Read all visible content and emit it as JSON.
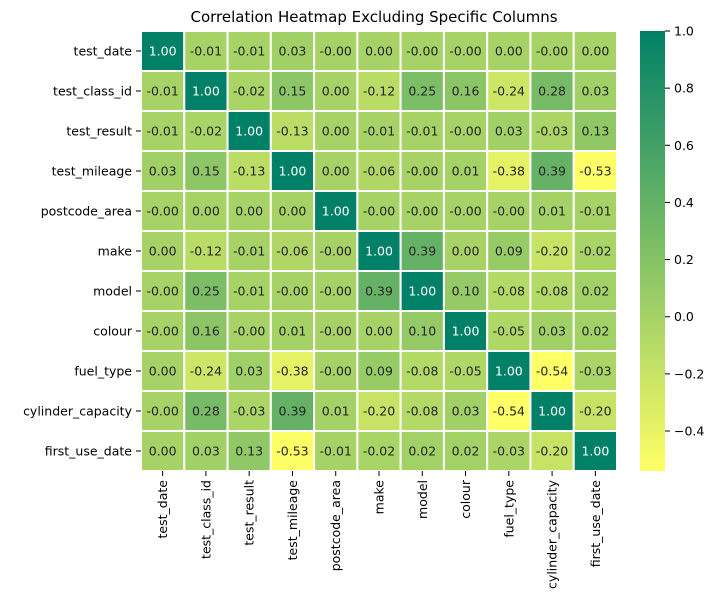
{
  "chart_data": {
    "type": "heatmap",
    "title": "Correlation Heatmap Excluding Specific Columns",
    "xlabel": "",
    "ylabel": "",
    "categories": [
      "test_date",
      "test_class_id",
      "test_result",
      "test_mileage",
      "postcode_area",
      "make",
      "model",
      "colour",
      "fuel_type",
      "cylinder_capacity",
      "first_use_date"
    ],
    "cell_labels": [
      [
        "1.00",
        "-0.01",
        "-0.01",
        "0.03",
        "-0.00",
        "0.00",
        "-0.00",
        "-0.00",
        "0.00",
        "-0.00",
        "0.00"
      ],
      [
        "-0.01",
        "1.00",
        "-0.02",
        "0.15",
        "0.00",
        "-0.12",
        "0.25",
        "0.16",
        "-0.24",
        "0.28",
        "0.03"
      ],
      [
        "-0.01",
        "-0.02",
        "1.00",
        "-0.13",
        "0.00",
        "-0.01",
        "-0.01",
        "-0.00",
        "0.03",
        "-0.03",
        "0.13"
      ],
      [
        "0.03",
        "0.15",
        "-0.13",
        "1.00",
        "0.00",
        "-0.06",
        "-0.00",
        "0.01",
        "-0.38",
        "0.39",
        "-0.53"
      ],
      [
        "-0.00",
        "0.00",
        "0.00",
        "0.00",
        "1.00",
        "-0.00",
        "-0.00",
        "-0.00",
        "-0.00",
        "0.01",
        "-0.01"
      ],
      [
        "0.00",
        "-0.12",
        "-0.01",
        "-0.06",
        "-0.00",
        "1.00",
        "0.39",
        "0.00",
        "0.09",
        "-0.20",
        "-0.02"
      ],
      [
        "-0.00",
        "0.25",
        "-0.01",
        "-0.00",
        "-0.00",
        "0.39",
        "1.00",
        "0.10",
        "-0.08",
        "-0.08",
        "0.02"
      ],
      [
        "-0.00",
        "0.16",
        "-0.00",
        "0.01",
        "-0.00",
        "0.00",
        "0.10",
        "1.00",
        "-0.05",
        "0.03",
        "0.02"
      ],
      [
        "0.00",
        "-0.24",
        "0.03",
        "-0.38",
        "-0.00",
        "0.09",
        "-0.08",
        "-0.05",
        "1.00",
        "-0.54",
        "-0.03"
      ],
      [
        "-0.00",
        "0.28",
        "-0.03",
        "0.39",
        "0.01",
        "-0.20",
        "-0.08",
        "0.03",
        "-0.54",
        "1.00",
        "-0.20"
      ],
      [
        "0.00",
        "0.03",
        "0.13",
        "-0.53",
        "-0.01",
        "-0.02",
        "0.02",
        "0.02",
        "-0.03",
        "-0.20",
        "1.00"
      ]
    ],
    "colormap": "summer_r",
    "color_low": "#ffff66",
    "color_high": "#008066",
    "vmin": -0.54,
    "vmax": 1.0,
    "colorbar_ticks": [
      "1.0",
      "0.8",
      "0.6",
      "0.4",
      "0.2",
      "0.0",
      "−0.2",
      "−0.4"
    ],
    "colorbar_tick_values": [
      1.0,
      0.8,
      0.6,
      0.4,
      0.2,
      0.0,
      -0.2,
      -0.4
    ],
    "grid_line_color": "#ffffff",
    "annotation_light_text_color": "#ffffff",
    "annotation_dark_text_color": "#262626"
  }
}
